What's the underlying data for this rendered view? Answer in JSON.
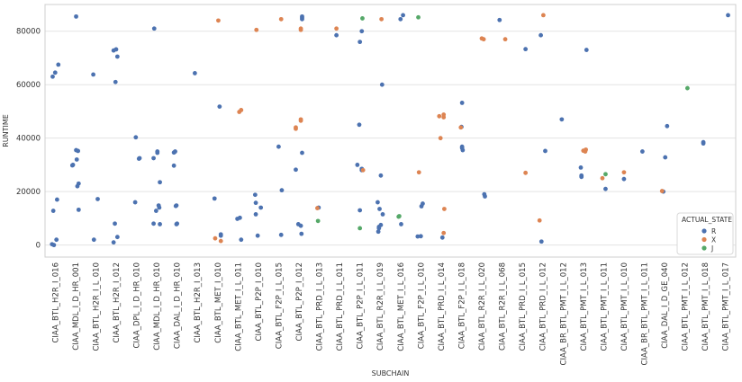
{
  "chart_data": {
    "type": "scatter",
    "title": "",
    "xlabel": "SUBCHAIN",
    "ylabel": "RUNTIME",
    "ylim": [
      -4500,
      90000
    ],
    "y_ticks": [
      0,
      20000,
      40000,
      60000,
      80000
    ],
    "y_tick_labels": [
      "0",
      "20000",
      "40000",
      "60000",
      "80000"
    ],
    "grid": true,
    "legend": {
      "title": "ACTUAL_STATE",
      "position": "right"
    },
    "categories": [
      "CIAA_BTL_H2R_I_016",
      "CIAA_MDL_I_D_HR_001",
      "CIAA_BTL_H2R_I_L_010",
      "CIAA_BTL_H2R_I_012",
      "CIAA_DPL_I_D_HR_010",
      "CIAA_MDL_I_D_HR_010",
      "CIAA_DAL_I_D_HR_010",
      "CIAA_BTL_H2R_I_013",
      "CIAA_BTL_MET_I_010",
      "CIAA_BTL_MET_I_L_011",
      "CIAA_BTL_P2P_I_010",
      "CIAA_BTL_F2P_I_L_015",
      "CIAA_BTL_P2P_I_012",
      "CIAA_BTL_PRD_I_L_013",
      "CIAA_BTL_PRD_I_L_011",
      "CIAA_BTL_P2P_I_L_011",
      "CIAA_BTL_R2R_I_L_019",
      "CIAA_BTL_MET_I_L_016",
      "CIAA_BTL_F2P_I_L_010",
      "CIAA_BTL_PRD_I_L_014",
      "CIAA_BTL_F2P_I_L_018",
      "CIAA_BTL_R2R_I_L_020",
      "CIAA_BTL_R2R_I_L_068",
      "CIAA_BTL_PRD_I_L_015",
      "CIAA_BTL_PRD_I_L_012",
      "CIAA_BR_BTL_PMT_I_L_012",
      "CIAA_BTL_PMT_I_L_013",
      "CIAA_BTL_PMT_I_L_011",
      "CIAA_BTL_PMT_I_L_010",
      "CIAA_BR_BTL_PMT_I_L_011",
      "CIAA_DAL_I_D_GE_040",
      "CIAA_BTL_PMT_I_L_012",
      "CIAA_BTL_PMT_I_L_018",
      "CIAA_BTL_PMT_I_L_017"
    ],
    "series": [
      {
        "name": "R",
        "color": "#4c72b0",
        "points": [
          [
            0,
            64500
          ],
          [
            0,
            63000
          ],
          [
            0,
            67500
          ],
          [
            0,
            17000
          ],
          [
            0,
            12800
          ],
          [
            0,
            2000
          ],
          [
            0,
            300
          ],
          [
            0,
            0
          ],
          [
            1,
            85500
          ],
          [
            1,
            35500
          ],
          [
            1,
            35200
          ],
          [
            1,
            32000
          ],
          [
            1,
            30000
          ],
          [
            1,
            29800
          ],
          [
            1,
            23000
          ],
          [
            1,
            22000
          ],
          [
            1,
            13200
          ],
          [
            2,
            63800
          ],
          [
            2,
            17200
          ],
          [
            2,
            2000
          ],
          [
            3,
            73200
          ],
          [
            3,
            72800
          ],
          [
            3,
            70500
          ],
          [
            3,
            61000
          ],
          [
            3,
            8000
          ],
          [
            3,
            3000
          ],
          [
            3,
            1000
          ],
          [
            4,
            40300
          ],
          [
            4,
            32500
          ],
          [
            4,
            32300
          ],
          [
            4,
            16000
          ],
          [
            5,
            81000
          ],
          [
            5,
            35000
          ],
          [
            5,
            34500
          ],
          [
            5,
            32500
          ],
          [
            5,
            23500
          ],
          [
            5,
            14800
          ],
          [
            5,
            14000
          ],
          [
            5,
            12800
          ],
          [
            5,
            8000
          ],
          [
            5,
            7800
          ],
          [
            6,
            35000
          ],
          [
            6,
            34800
          ],
          [
            6,
            34600
          ],
          [
            6,
            29700
          ],
          [
            6,
            14800
          ],
          [
            6,
            14600
          ],
          [
            6,
            8000
          ],
          [
            6,
            7800
          ],
          [
            7,
            64300
          ],
          [
            8,
            51800
          ],
          [
            8,
            17400
          ],
          [
            8,
            4000
          ],
          [
            8,
            3500
          ],
          [
            9,
            10200
          ],
          [
            9,
            9800
          ],
          [
            9,
            2000
          ],
          [
            10,
            18800
          ],
          [
            10,
            15800
          ],
          [
            10,
            14000
          ],
          [
            10,
            11500
          ],
          [
            10,
            3500
          ],
          [
            11,
            36800
          ],
          [
            11,
            20500
          ],
          [
            11,
            3800
          ],
          [
            12,
            85500
          ],
          [
            12,
            85000
          ],
          [
            12,
            84500
          ],
          [
            12,
            34500
          ],
          [
            12,
            28200
          ],
          [
            12,
            7800
          ],
          [
            12,
            7200
          ],
          [
            12,
            4200
          ],
          [
            13,
            14000
          ],
          [
            14,
            78500
          ],
          [
            15,
            80000
          ],
          [
            15,
            76000
          ],
          [
            15,
            45000
          ],
          [
            15,
            30000
          ],
          [
            15,
            28500
          ],
          [
            15,
            28000
          ],
          [
            15,
            13000
          ],
          [
            16,
            60000
          ],
          [
            16,
            26000
          ],
          [
            16,
            16000
          ],
          [
            16,
            13500
          ],
          [
            16,
            11500
          ],
          [
            16,
            7500
          ],
          [
            16,
            6800
          ],
          [
            16,
            6300
          ],
          [
            16,
            5000
          ],
          [
            17,
            86000
          ],
          [
            17,
            84500
          ],
          [
            17,
            7800
          ],
          [
            18,
            15500
          ],
          [
            18,
            14500
          ],
          [
            18,
            3300
          ],
          [
            18,
            3200
          ],
          [
            19,
            2800
          ],
          [
            20,
            53200
          ],
          [
            20,
            44200
          ],
          [
            20,
            36800
          ],
          [
            20,
            36300
          ],
          [
            20,
            35500
          ],
          [
            21,
            19000
          ],
          [
            21,
            18200
          ],
          [
            22,
            84200
          ],
          [
            23,
            73300
          ],
          [
            24,
            78500
          ],
          [
            24,
            35200
          ],
          [
            24,
            1300
          ],
          [
            25,
            47000
          ],
          [
            26,
            73000
          ],
          [
            26,
            29000
          ],
          [
            26,
            26000
          ],
          [
            26,
            25500
          ],
          [
            27,
            21000
          ],
          [
            28,
            24700
          ],
          [
            29,
            35000
          ],
          [
            30,
            44500
          ],
          [
            30,
            32800
          ],
          [
            30,
            20000
          ],
          [
            32,
            38500
          ],
          [
            32,
            38000
          ],
          [
            33,
            86000
          ]
        ]
      },
      {
        "name": "X",
        "color": "#dd8452",
        "points": [
          [
            8,
            84000
          ],
          [
            8,
            2500
          ],
          [
            8,
            1500
          ],
          [
            9,
            50500
          ],
          [
            9,
            49800
          ],
          [
            10,
            80500
          ],
          [
            11,
            84500
          ],
          [
            12,
            81000
          ],
          [
            12,
            80500
          ],
          [
            12,
            47000
          ],
          [
            12,
            46500
          ],
          [
            12,
            44000
          ],
          [
            12,
            43500
          ],
          [
            13,
            13800
          ],
          [
            14,
            81000
          ],
          [
            15,
            28000
          ],
          [
            16,
            84500
          ],
          [
            18,
            27200
          ],
          [
            19,
            48800
          ],
          [
            19,
            48200
          ],
          [
            19,
            47800
          ],
          [
            19,
            40000
          ],
          [
            19,
            13500
          ],
          [
            19,
            4500
          ],
          [
            20,
            44000
          ],
          [
            21,
            77300
          ],
          [
            21,
            77000
          ],
          [
            22,
            77000
          ],
          [
            23,
            27000
          ],
          [
            24,
            86000
          ],
          [
            24,
            9200
          ],
          [
            26,
            35700
          ],
          [
            26,
            35300
          ],
          [
            26,
            35000
          ],
          [
            27,
            25000
          ],
          [
            28,
            27200
          ],
          [
            30,
            20200
          ]
        ]
      },
      {
        "name": "J",
        "color": "#55a868",
        "points": [
          [
            13,
            9000
          ],
          [
            15,
            84800
          ],
          [
            15,
            6300
          ],
          [
            17,
            10800
          ],
          [
            17,
            10600
          ],
          [
            18,
            85200
          ],
          [
            27,
            26500
          ],
          [
            31,
            58700
          ]
        ]
      }
    ]
  }
}
